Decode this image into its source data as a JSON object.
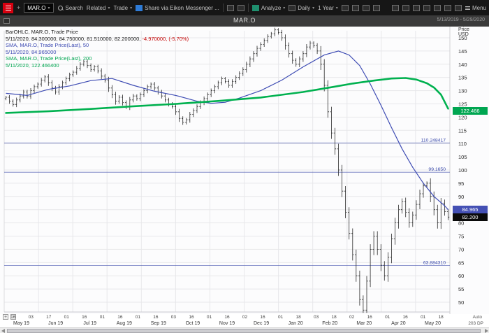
{
  "window": {
    "title": "MAR.O",
    "menu_label": "Menu"
  },
  "toolbar": {
    "symbol_input": "MAR.O",
    "search_label": "Search",
    "related_label": "Related",
    "trade_label": "Trade",
    "share_label": "Share via Eikon Messenger ...",
    "analyze_label": "Analyze",
    "interval_label": "Daily",
    "range_label": "1 Year"
  },
  "legend": {
    "line1": "BarOHLC, MAR.O, Trade Price",
    "line2_main": "5/11/2020, 84.300000, 84.750000, 81.510000, 82.200000,",
    "line2_change": " -4.970000, (-5.70%)",
    "line3": "SMA, MAR.O, Trade Price(Last), 50",
    "line4": "5/11/2020, 84.965000",
    "line5": "SMA, MAR.O, Trade Price(Last), 200",
    "line6": "5/11/2020, 122.466400"
  },
  "axis": {
    "date_range": "5/13/2019 - 5/29/2020",
    "price_label_1": "Price",
    "price_label_2": "USD",
    "auto_label": "Auto",
    "last_badge": "82.200",
    "sma50_badge": "84.965",
    "sma200_badge": "122.466",
    "dp_label": "203 DP"
  },
  "chart_data": {
    "type": "ohlc-bar",
    "symbol": "MAR.O",
    "title": "MAR.O Trade Price, Daily, 5/13/2019 - 5/29/2020",
    "ylim": [
      46,
      154
    ],
    "yticks": [
      150,
      145,
      140,
      135,
      130,
      125,
      120,
      115,
      110,
      105,
      100,
      95,
      90,
      85,
      80,
      75,
      70,
      65,
      60,
      55,
      50
    ],
    "grid": true,
    "legend_position": "top-left",
    "annotations": [
      {
        "label": "110.248417",
        "value": 110.2484
      },
      {
        "label": "99.1650",
        "value": 99.165
      },
      {
        "label": "63.884310",
        "value": 63.8843
      }
    ],
    "last_bar": {
      "date": "5/11/2020",
      "open": 84.3,
      "high": 84.75,
      "low": 81.51,
      "close": 82.2,
      "change": -4.97,
      "change_pct": "-5.70%"
    },
    "sma50_last": 84.965,
    "sma200_last": 122.466,
    "open_first": 127.0,
    "closes": [
      127.5,
      126.0,
      124.8,
      126.5,
      128.0,
      129.5,
      128.0,
      130.0,
      131.5,
      132.5,
      134.0,
      135.2,
      133.0,
      131.0,
      129.5,
      131.5,
      133.0,
      134.5,
      136.0,
      137.0,
      138.5,
      140.0,
      141.0,
      139.5,
      138.0,
      139.0,
      137.5,
      135.5,
      134.0,
      131.0,
      128.5,
      126.0,
      127.5,
      125.5,
      124.0,
      126.5,
      128.0,
      127.0,
      128.5,
      130.0,
      131.5,
      132.5,
      131.0,
      129.5,
      128.0,
      126.5,
      125.0,
      124.0,
      122.0,
      119.5,
      118.0,
      119.0,
      121.0,
      122.5,
      124.0,
      125.5,
      127.0,
      128.5,
      130.0,
      131.5,
      133.0,
      134.5,
      133.5,
      132.0,
      133.5,
      135.0,
      136.5,
      138.0,
      140.0,
      142.0,
      144.0,
      146.0,
      147.5,
      149.0,
      150.5,
      151.5,
      153.0,
      152.0,
      150.0,
      147.0,
      144.0,
      141.5,
      140.0,
      142.0,
      144.0,
      146.5,
      148.0,
      147.0,
      145.0,
      140.0,
      132.0,
      122.0,
      114.0,
      108.0,
      100.0,
      92.0,
      84.0,
      76.0,
      68.0,
      60.0,
      51.0,
      47.0,
      58.0,
      70.0,
      75.0,
      70.0,
      64.0,
      60.0,
      67.0,
      74.0,
      80.0,
      85.0,
      88.0,
      84.0,
      80.0,
      83.0,
      87.0,
      91.0,
      94.0,
      95.0,
      90.0,
      85.0,
      80.0,
      87.5,
      84.3,
      82.2
    ],
    "sma50": [
      [
        0,
        129.0
      ],
      [
        6,
        128.2
      ],
      [
        12,
        130.5
      ],
      [
        18,
        131.8
      ],
      [
        24,
        133.8
      ],
      [
        30,
        134.6
      ],
      [
        36,
        132.0
      ],
      [
        42,
        129.8
      ],
      [
        48,
        128.2
      ],
      [
        54,
        126.0
      ],
      [
        58,
        125.2
      ],
      [
        62,
        125.6
      ],
      [
        66,
        127.2
      ],
      [
        72,
        130.0
      ],
      [
        78,
        134.0
      ],
      [
        84,
        139.0
      ],
      [
        90,
        143.5
      ],
      [
        94,
        145.0
      ],
      [
        97,
        143.5
      ],
      [
        100,
        139.5
      ],
      [
        103,
        132.5
      ],
      [
        106,
        124.5
      ],
      [
        109,
        116.0
      ],
      [
        112,
        108.0
      ],
      [
        115,
        101.0
      ],
      [
        118,
        95.0
      ],
      [
        121,
        90.0
      ],
      [
        124,
        86.5
      ],
      [
        125,
        85.0
      ]
    ],
    "sma200": [
      [
        0,
        121.6
      ],
      [
        12,
        122.2
      ],
      [
        24,
        123.1
      ],
      [
        36,
        124.1
      ],
      [
        48,
        125.0
      ],
      [
        60,
        126.1
      ],
      [
        72,
        127.4
      ],
      [
        84,
        129.5
      ],
      [
        92,
        131.3
      ],
      [
        98,
        132.7
      ],
      [
        104,
        133.8
      ],
      [
        109,
        134.6
      ],
      [
        113,
        134.8
      ],
      [
        116,
        134.2
      ],
      [
        119,
        132.8
      ],
      [
        121,
        131.2
      ],
      [
        123,
        128.5
      ],
      [
        125,
        123.2
      ]
    ],
    "day_ticks": [
      "16",
      "03",
      "17",
      "01",
      "16",
      "01",
      "16",
      "01",
      "16",
      "03",
      "16",
      "01",
      "16",
      "02",
      "16",
      "01",
      "18",
      "03",
      "18",
      "02",
      "16",
      "01",
      "16",
      "01",
      "18"
    ],
    "months": [
      "May 19",
      "Jun 19",
      "Jul 19",
      "Aug 19",
      "Sep 19",
      "Oct 19",
      "Nov 19",
      "Dec 19",
      "Jan 20",
      "Feb 20",
      "Mar 20",
      "Apr 20",
      "May 20"
    ],
    "colors": {
      "bar": "#2b2b2b",
      "sma50": "#3f4db4",
      "sma200": "#00b14f",
      "annotation": "#4a57b0",
      "annotation_text": "#3949ab",
      "grid": "#e7e7ea",
      "last_badge_bg": "#0a0a0a",
      "sma50_badge_bg": "#4450b4",
      "sma200_badge_bg": "#00a651"
    }
  }
}
